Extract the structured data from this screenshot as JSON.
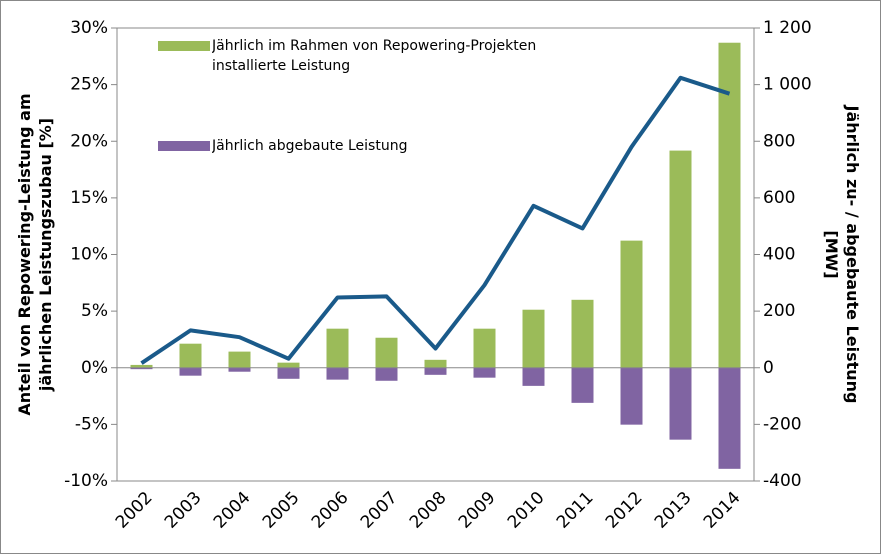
{
  "chart_data": {
    "type": "bar_line",
    "ylabel_lines": [
      "Anteil von Repowering-Leistung am",
      "jährlichen Leistungszubau [%]"
    ],
    "y2label_lines": [
      "Jährlich zu- / abgebaute Leistung",
      "[MW]"
    ],
    "categories": [
      "2002",
      "2003",
      "2004",
      "2005",
      "2006",
      "2007",
      "2008",
      "2009",
      "2010",
      "2011",
      "2012",
      "2013",
      "2014"
    ],
    "series": [
      {
        "name": "Jährlich im Rahmen von Repowering-Projekten installierte Leistung",
        "color": "#9bbb59",
        "axis": "y2",
        "values": [
          10,
          85,
          57,
          18,
          138,
          106,
          28,
          138,
          205,
          240,
          449,
          767,
          1148
        ]
      },
      {
        "name": "Jährlich abgebaute Leistung",
        "color": "#8064a2",
        "axis": "y2",
        "values": [
          -5,
          -28,
          -14,
          -39,
          -42,
          -46,
          -25,
          -35,
          -64,
          -124,
          -201,
          -254,
          -357
        ]
      },
      {
        "color": "#1a5a8a",
        "axis": "y",
        "kind": "line",
        "values": [
          0.4,
          3.3,
          2.7,
          0.8,
          6.2,
          6.3,
          1.7,
          7.3,
          14.3,
          12.3,
          19.5,
          25.6,
          24.2
        ]
      }
    ],
    "ylim": [
      -10,
      30
    ],
    "yticks": [
      {
        "value": -10,
        "label": "-10%"
      },
      {
        "value": -5,
        "label": "-5%"
      },
      {
        "value": 0,
        "label": "0%"
      },
      {
        "value": 5,
        "label": "5%"
      },
      {
        "value": 10,
        "label": "10%"
      },
      {
        "value": 15,
        "label": "15%"
      },
      {
        "value": 20,
        "label": "20%"
      },
      {
        "value": 25,
        "label": "25%"
      },
      {
        "value": 30,
        "label": "30%"
      }
    ],
    "y2lim": [
      -400,
      1200
    ],
    "y2ticks": [
      -400,
      -200,
      0,
      200,
      400,
      600,
      800,
      {
        "value": 1000,
        "label": "1 000"
      },
      {
        "value": 1200,
        "label": "1 200"
      }
    ],
    "legend": "upper left"
  }
}
